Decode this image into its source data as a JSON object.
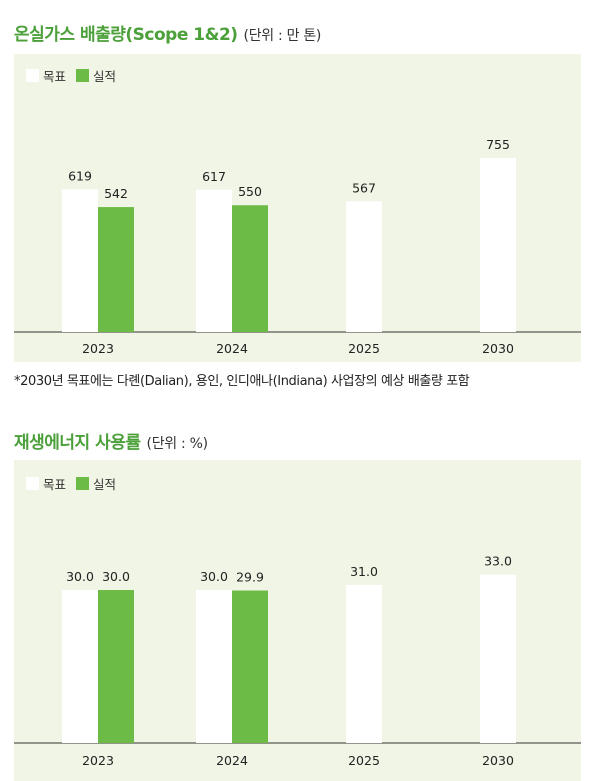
{
  "charts": [
    {
      "title": "온실가스 배출량(Scope 1&2)",
      "unit": "(단위 : 만 톤)",
      "legend": {
        "target": "목표",
        "actual": "실적"
      },
      "footnote": "*2030년 목표에는 다롄(Dalian), 용인, 인디애나(Indiana) 사업장의 예상 배출량 포함"
    },
    {
      "title": "재생에너지 사용률",
      "unit": "(단위 : %)",
      "legend": {
        "target": "목표",
        "actual": "실적"
      }
    }
  ],
  "colors": {
    "target": "#ffffff",
    "actual": "#6cbb46",
    "title": "#4ba03a",
    "panel": "#f1f5e6"
  },
  "chart_data": [
    {
      "type": "bar",
      "title": "온실가스 배출량(Scope 1&2)",
      "ylabel": "",
      "xlabel": "",
      "unit": "만 톤",
      "categories": [
        "2023",
        "2024",
        "2025",
        "2030"
      ],
      "series": [
        {
          "name": "목표",
          "values": [
            619,
            617,
            567,
            755
          ],
          "labels": [
            "619",
            "617",
            "567",
            "755"
          ]
        },
        {
          "name": "실적",
          "values": [
            542,
            550,
            null,
            null
          ],
          "labels": [
            "542",
            "550",
            "",
            ""
          ]
        }
      ],
      "ylim": [
        0,
        1000
      ],
      "legend_position": "top-left",
      "grid": false
    },
    {
      "type": "bar",
      "title": "재생에너지 사용률",
      "ylabel": "",
      "xlabel": "",
      "unit": "%",
      "categories": [
        "2023",
        "2024",
        "2025",
        "2030"
      ],
      "series": [
        {
          "name": "목표",
          "values": [
            30.0,
            30.0,
            31.0,
            33.0
          ],
          "labels": [
            "30.0",
            "30.0",
            "31.0",
            "33.0"
          ]
        },
        {
          "name": "실적",
          "values": [
            30.0,
            29.9,
            null,
            null
          ],
          "labels": [
            "30.0",
            "29.9",
            "",
            ""
          ]
        }
      ],
      "ylim": [
        0,
        55
      ],
      "legend_position": "top-left",
      "grid": false
    }
  ]
}
